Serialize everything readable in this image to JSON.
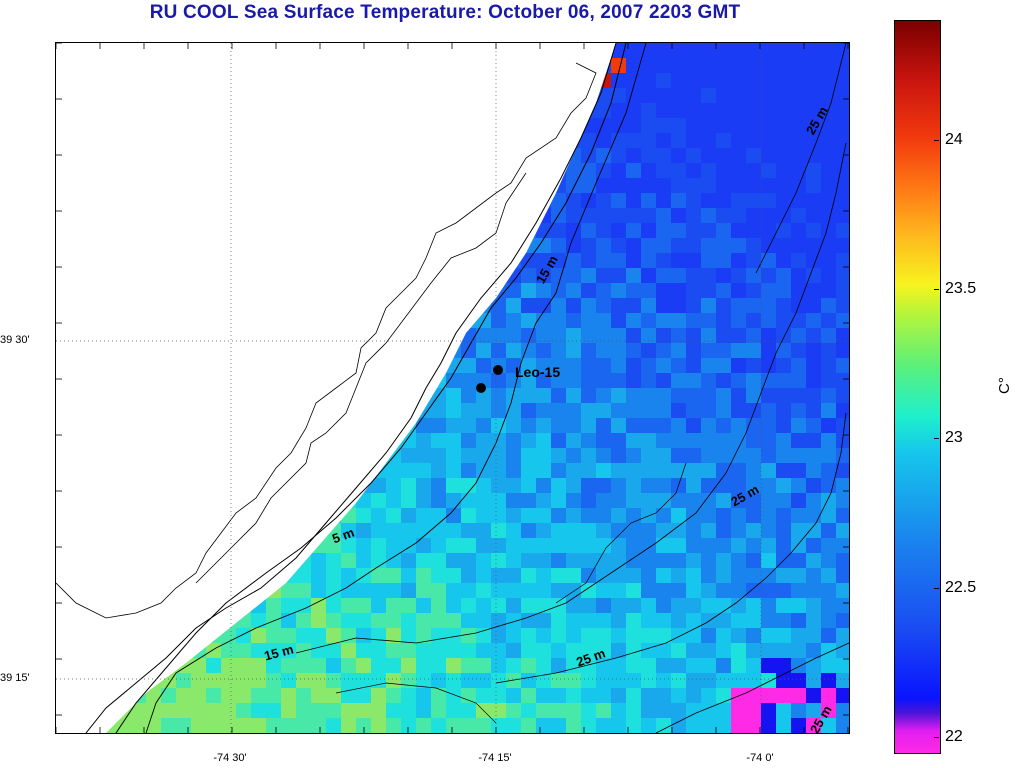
{
  "title": "RU COOL  Sea Surface Temperature:  October 06, 2007 2203 GMT",
  "x_axis_labels": [
    "-74 30'",
    "-74 15'",
    "-74 0'"
  ],
  "y_axis_labels": [
    "39 30'",
    "39 15'"
  ],
  "colorbar": {
    "ticks": [
      "24",
      "23.5",
      "23",
      "22.5",
      "22"
    ],
    "tick_values": [
      24.0,
      23.5,
      23.0,
      22.5,
      22.0
    ],
    "min": 21.95,
    "max": 24.4,
    "unit": "C°",
    "colors": [
      "#ff2ae6",
      "#0a14ff",
      "#1a84ee",
      "#16c6ec",
      "#b6f53a",
      "#f7f31e",
      "#ff7a14",
      "#c8140e",
      "#7a0000"
    ]
  },
  "station": {
    "name": "Leo-15"
  },
  "isobaths": [
    {
      "text": "5 m"
    },
    {
      "text": "15 m"
    },
    {
      "text": "15 m"
    },
    {
      "text": "25 m"
    },
    {
      "text": "25 m"
    },
    {
      "text": "25 m"
    },
    {
      "text": "25 m"
    }
  ]
}
